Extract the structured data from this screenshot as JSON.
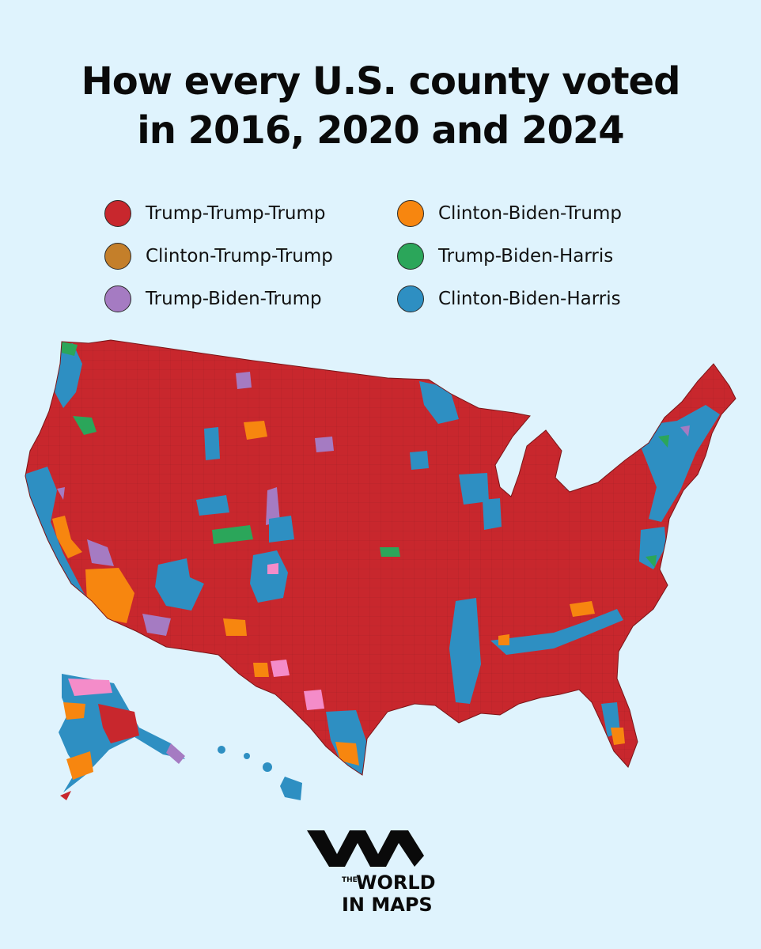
{
  "title_lines": [
    "How every U.S. county voted",
    "in 2016, 2020 and 2024"
  ],
  "legend": [
    {
      "label": "Trump-Trump-Trump",
      "color": "#c8272d"
    },
    {
      "label": "Clinton-Trump-Trump",
      "color": "#c47f2a"
    },
    {
      "label": "Trump-Biden-Trump",
      "color": "#a57bc2"
    },
    {
      "label": "Clinton-Biden-Trump",
      "color": "#f7860f"
    },
    {
      "label": "Trump-Biden-Harris",
      "color": "#2ba65a"
    },
    {
      "label": "Clinton-Biden-Harris",
      "color": "#2e8fc2"
    }
  ],
  "map": {
    "base_color": "#c8272d",
    "unlabeled_pink": "#f48cc9"
  },
  "logo": {
    "the": "THE",
    "world": "WORLD",
    "in_maps": "IN MAPS"
  }
}
